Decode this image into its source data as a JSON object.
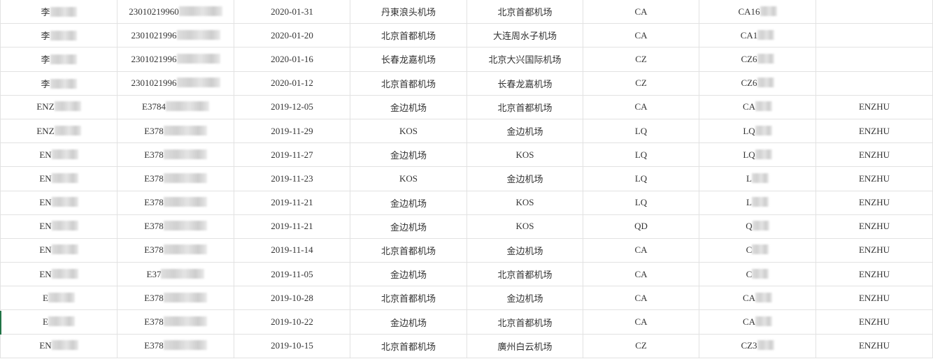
{
  "sheet": {
    "columns": 8,
    "masked_columns": [
      0,
      1,
      6
    ],
    "rows": [
      [
        "李",
        "23010219960",
        "2020-01-31",
        "丹東浪头机场",
        "北京首都机场",
        "CA",
        "CA16",
        ""
      ],
      [
        "李",
        "2301021996",
        "2020-01-20",
        "北京首都机场",
        "大连周水子机场",
        "CA",
        "CA1",
        ""
      ],
      [
        "李",
        "2301021996",
        "2020-01-16",
        "长春龙嘉机场",
        "北京大兴国际机场",
        "CZ",
        "CZ6",
        ""
      ],
      [
        "李",
        "2301021996",
        "2020-01-12",
        "北京首都机场",
        "长春龙嘉机场",
        "CZ",
        "CZ6",
        ""
      ],
      [
        "ENZ",
        "E3784",
        "2019-12-05",
        "金边机场",
        "北京首都机场",
        "CA",
        "CA",
        "ENZHU"
      ],
      [
        "ENZ",
        "E378",
        "2019-11-29",
        "KOS",
        "金边机场",
        "LQ",
        "LQ",
        "ENZHU"
      ],
      [
        "EN",
        "E378",
        "2019-11-27",
        "金边机场",
        "KOS",
        "LQ",
        "LQ",
        "ENZHU"
      ],
      [
        "EN",
        "E378",
        "2019-11-23",
        "KOS",
        "金边机场",
        "LQ",
        "L",
        "ENZHU"
      ],
      [
        "EN",
        "E378",
        "2019-11-21",
        "金边机场",
        "KOS",
        "LQ",
        "L",
        "ENZHU"
      ],
      [
        "EN",
        "E378",
        "2019-11-21",
        "金边机场",
        "KOS",
        "QD",
        "Q",
        "ENZHU"
      ],
      [
        "EN",
        "E378",
        "2019-11-14",
        "北京首都机场",
        "金边机场",
        "CA",
        "C",
        "ENZHU"
      ],
      [
        "EN",
        "E37",
        "2019-11-05",
        "金边机场",
        "北京首都机场",
        "CA",
        "C",
        "ENZHU"
      ],
      [
        "E",
        "E378",
        "2019-10-28",
        "北京首都机场",
        "金边机场",
        "CA",
        "CA",
        "ENZHU"
      ],
      [
        "E",
        "E378",
        "2019-10-22",
        "金边机场",
        "北京首都机场",
        "CA",
        "CA",
        "ENZHU"
      ],
      [
        "EN",
        "E378",
        "2019-10-15",
        "北京首都机场",
        "廣州白云机场",
        "CZ",
        "CZ3",
        "ENZHU"
      ]
    ]
  },
  "colors": {
    "grid": "#e2e2e2",
    "text": "#333333",
    "selection_marker": "#217346"
  }
}
